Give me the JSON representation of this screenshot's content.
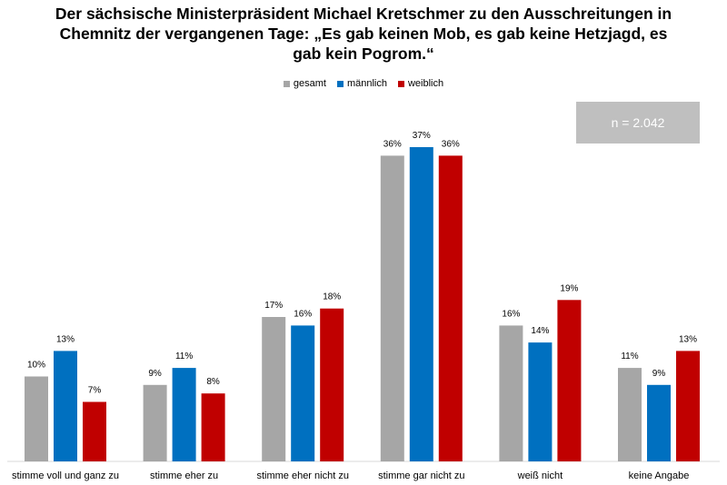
{
  "title": {
    "line1": "Der sächsische Ministerpräsident Michael Kretschmer zu den Ausschreitungen in",
    "line2": "Chemnitz der vergangenen Tage: „Es gab keinen Mob, es gab keine Hetzjagd, es",
    "line3": "gab kein Pogrom.“"
  },
  "n_box": {
    "text": "n = 2.042",
    "color": "#bfbfbf"
  },
  "colors": {
    "gesamt": "#a6a6a6",
    "maennlich": "#0070c0",
    "weiblich": "#c00000"
  },
  "chart_data": {
    "type": "bar",
    "categories": [
      "stimme voll und ganz zu",
      "stimme eher zu",
      "stimme eher nicht zu",
      "stimme gar nicht zu",
      "weiß nicht",
      "keine Angabe"
    ],
    "series": [
      {
        "name": "gesamt",
        "values": [
          10,
          9,
          17,
          36,
          16,
          11
        ],
        "labels": [
          "10%",
          "9%",
          "17%",
          "36%",
          "16%",
          "11%"
        ]
      },
      {
        "name": "männlich",
        "values": [
          13,
          11,
          16,
          37,
          14,
          9
        ],
        "labels": [
          "13%",
          "11%",
          "16%",
          "37%",
          "14%",
          "9%"
        ]
      },
      {
        "name": "weiblich",
        "values": [
          7,
          8,
          18,
          36,
          19,
          13
        ],
        "labels": [
          "7%",
          "8%",
          "18%",
          "36%",
          "19%",
          "13%"
        ]
      }
    ],
    "ylim": [
      0,
      40
    ],
    "grid": false,
    "legend": "top-center"
  }
}
